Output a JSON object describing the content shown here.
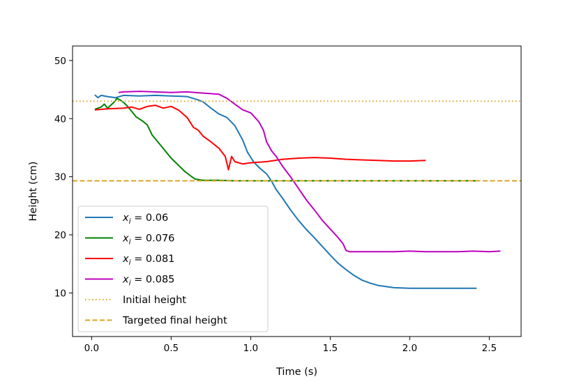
{
  "chart_data": {
    "type": "line",
    "title": "",
    "xlabel": "Time (s)",
    "ylabel": "Height (cm)",
    "xlim": [
      -0.12,
      2.7
    ],
    "ylim": [
      2.5,
      52.5
    ],
    "xticks": [
      0.0,
      0.5,
      1.0,
      1.5,
      2.0,
      2.5
    ],
    "xtick_labels": [
      "0.0",
      "0.5",
      "1.0",
      "1.5",
      "2.0",
      "2.5"
    ],
    "yticks": [
      10,
      20,
      30,
      40,
      50
    ],
    "ytick_labels": [
      "10",
      "20",
      "30",
      "40",
      "50"
    ],
    "grid": false,
    "legend_position": "lower-left",
    "series": [
      {
        "name": "x_i = 0.06",
        "legend_var": "x",
        "legend_sub": "i",
        "legend_value": " = 0.06",
        "color": "#1f77b4",
        "style": "solid",
        "points": [
          [
            0.02,
            44.1
          ],
          [
            0.04,
            43.6
          ],
          [
            0.06,
            44.0
          ],
          [
            0.1,
            43.8
          ],
          [
            0.15,
            43.6
          ],
          [
            0.2,
            44.0
          ],
          [
            0.3,
            43.9
          ],
          [
            0.4,
            44.0
          ],
          [
            0.5,
            43.9
          ],
          [
            0.6,
            43.8
          ],
          [
            0.66,
            43.3
          ],
          [
            0.7,
            42.9
          ],
          [
            0.75,
            41.8
          ],
          [
            0.8,
            40.8
          ],
          [
            0.85,
            40.2
          ],
          [
            0.9,
            38.8
          ],
          [
            0.95,
            36.3
          ],
          [
            0.98,
            34.2
          ],
          [
            1.02,
            32.5
          ],
          [
            1.06,
            31.4
          ],
          [
            1.1,
            30.5
          ],
          [
            1.13,
            29.3
          ],
          [
            1.16,
            27.8
          ],
          [
            1.2,
            26.3
          ],
          [
            1.25,
            24.3
          ],
          [
            1.3,
            22.5
          ],
          [
            1.35,
            20.9
          ],
          [
            1.4,
            19.5
          ],
          [
            1.45,
            18.0
          ],
          [
            1.5,
            16.5
          ],
          [
            1.55,
            15.1
          ],
          [
            1.6,
            14.0
          ],
          [
            1.65,
            13.0
          ],
          [
            1.7,
            12.2
          ],
          [
            1.75,
            11.7
          ],
          [
            1.8,
            11.3
          ],
          [
            1.85,
            11.1
          ],
          [
            1.9,
            10.9
          ],
          [
            2.0,
            10.8
          ],
          [
            2.1,
            10.8
          ],
          [
            2.2,
            10.8
          ],
          [
            2.3,
            10.8
          ],
          [
            2.42,
            10.8
          ]
        ]
      },
      {
        "name": "x_i = 0.076",
        "legend_var": "x",
        "legend_sub": "i",
        "legend_value": " = 0.076",
        "color": "#008000",
        "style": "solid",
        "points": [
          [
            0.02,
            41.6
          ],
          [
            0.04,
            41.8
          ],
          [
            0.06,
            42.0
          ],
          [
            0.08,
            42.5
          ],
          [
            0.1,
            41.8
          ],
          [
            0.12,
            42.3
          ],
          [
            0.14,
            42.8
          ],
          [
            0.16,
            43.5
          ],
          [
            0.18,
            43.2
          ],
          [
            0.2,
            42.8
          ],
          [
            0.22,
            42.3
          ],
          [
            0.25,
            41.3
          ],
          [
            0.28,
            40.3
          ],
          [
            0.32,
            39.6
          ],
          [
            0.35,
            38.9
          ],
          [
            0.38,
            37.2
          ],
          [
            0.41,
            36.2
          ],
          [
            0.44,
            35.2
          ],
          [
            0.47,
            34.2
          ],
          [
            0.5,
            33.2
          ],
          [
            0.53,
            32.4
          ],
          [
            0.56,
            31.6
          ],
          [
            0.59,
            30.8
          ],
          [
            0.62,
            30.2
          ],
          [
            0.65,
            29.6
          ],
          [
            0.7,
            29.4
          ],
          [
            0.8,
            29.4
          ],
          [
            0.9,
            29.3
          ],
          [
            1.0,
            29.3
          ],
          [
            1.2,
            29.3
          ],
          [
            1.4,
            29.3
          ],
          [
            1.6,
            29.3
          ],
          [
            1.8,
            29.3
          ],
          [
            2.0,
            29.3
          ],
          [
            2.2,
            29.3
          ],
          [
            2.44,
            29.3
          ]
        ]
      },
      {
        "name": "x_i = 0.081",
        "legend_var": "x",
        "legend_sub": "i",
        "legend_value": " = 0.081",
        "color": "#ff0000",
        "style": "solid",
        "points": [
          [
            0.02,
            41.5
          ],
          [
            0.1,
            41.7
          ],
          [
            0.2,
            41.8
          ],
          [
            0.25,
            42.0
          ],
          [
            0.3,
            41.6
          ],
          [
            0.35,
            42.1
          ],
          [
            0.4,
            42.3
          ],
          [
            0.45,
            41.8
          ],
          [
            0.5,
            42.1
          ],
          [
            0.55,
            41.4
          ],
          [
            0.6,
            40.2
          ],
          [
            0.64,
            38.5
          ],
          [
            0.67,
            38.0
          ],
          [
            0.7,
            37.0
          ],
          [
            0.75,
            36.0
          ],
          [
            0.8,
            34.9
          ],
          [
            0.84,
            33.5
          ],
          [
            0.86,
            31.2
          ],
          [
            0.88,
            33.5
          ],
          [
            0.9,
            32.6
          ],
          [
            0.95,
            32.2
          ],
          [
            1.0,
            32.4
          ],
          [
            1.1,
            32.6
          ],
          [
            1.2,
            33.0
          ],
          [
            1.3,
            33.2
          ],
          [
            1.4,
            33.3
          ],
          [
            1.5,
            33.2
          ],
          [
            1.6,
            33.0
          ],
          [
            1.7,
            32.9
          ],
          [
            1.8,
            32.8
          ],
          [
            1.9,
            32.7
          ],
          [
            2.0,
            32.7
          ],
          [
            2.1,
            32.8
          ]
        ]
      },
      {
        "name": "x_i = 0.085",
        "legend_var": "x",
        "legend_sub": "i",
        "legend_value": " = 0.085",
        "color": "#bf00bf",
        "style": "solid",
        "points": [
          [
            0.17,
            44.5
          ],
          [
            0.2,
            44.6
          ],
          [
            0.3,
            44.7
          ],
          [
            0.4,
            44.6
          ],
          [
            0.5,
            44.5
          ],
          [
            0.6,
            44.6
          ],
          [
            0.7,
            44.4
          ],
          [
            0.8,
            44.2
          ],
          [
            0.85,
            43.5
          ],
          [
            0.9,
            42.5
          ],
          [
            0.95,
            41.5
          ],
          [
            1.0,
            41.0
          ],
          [
            1.05,
            39.5
          ],
          [
            1.08,
            38.0
          ],
          [
            1.1,
            36.0
          ],
          [
            1.13,
            34.5
          ],
          [
            1.16,
            33.5
          ],
          [
            1.2,
            31.8
          ],
          [
            1.25,
            30.0
          ],
          [
            1.3,
            28.0
          ],
          [
            1.35,
            26.0
          ],
          [
            1.4,
            24.3
          ],
          [
            1.45,
            22.5
          ],
          [
            1.5,
            21.0
          ],
          [
            1.55,
            19.5
          ],
          [
            1.58,
            18.5
          ],
          [
            1.6,
            17.3
          ],
          [
            1.62,
            17.1
          ],
          [
            1.7,
            17.1
          ],
          [
            1.8,
            17.1
          ],
          [
            1.9,
            17.1
          ],
          [
            2.0,
            17.2
          ],
          [
            2.1,
            17.1
          ],
          [
            2.2,
            17.1
          ],
          [
            2.3,
            17.1
          ],
          [
            2.4,
            17.2
          ],
          [
            2.5,
            17.1
          ],
          [
            2.57,
            17.2
          ]
        ]
      },
      {
        "name": "Initial height",
        "legend_value": "Initial height",
        "color": "#daa520",
        "style": "dotted",
        "y": 43,
        "horizontal": true
      },
      {
        "name": "Targeted final height",
        "legend_value": "Targeted final height",
        "color": "#daa520",
        "style": "dashed",
        "y": 29.3,
        "horizontal": true
      }
    ]
  }
}
